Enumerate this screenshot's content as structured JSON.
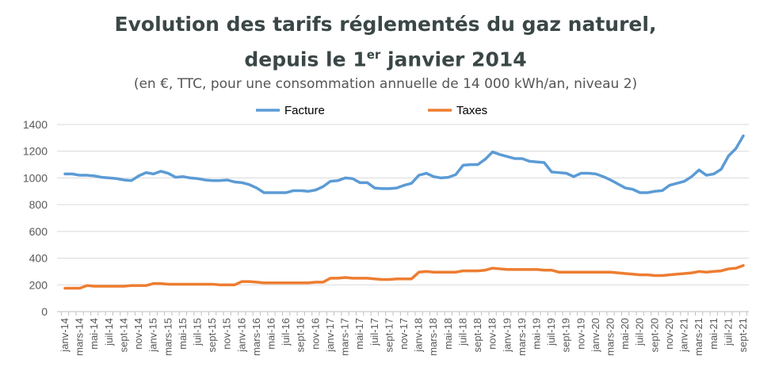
{
  "chart_data": {
    "type": "line",
    "title_line1": "Evolution des tarifs réglementés du gaz naturel,",
    "title_line2_pre": "depuis le 1",
    "title_sup": "er",
    "title_line2_post": " janvier 2014",
    "subtitle": "(en €, TTC, pour une consommation annuelle de 14 000 kWh/an, niveau 2)",
    "ylim": [
      0,
      1400
    ],
    "yticks": [
      0,
      200,
      400,
      600,
      800,
      1000,
      1200,
      1400
    ],
    "grid": true,
    "legend_position": "top",
    "xtick_labels": [
      "janv-14",
      "mars-14",
      "mai-14",
      "juil-14",
      "sept-14",
      "nov-14",
      "janv-15",
      "mars-15",
      "mai-15",
      "juil-15",
      "sept-15",
      "nov-15",
      "janv-16",
      "mars-16",
      "mai-16",
      "juil-16",
      "sept-16",
      "nov-16",
      "janv-17",
      "mars-17",
      "mai-17",
      "juil-17",
      "sept-17",
      "nov-17",
      "janv-18",
      "mars-18",
      "mai-18",
      "juil-18",
      "sept-18",
      "nov-18",
      "janv-19",
      "mars-19",
      "mai-19",
      "juil-19",
      "sept-19",
      "nov-19",
      "janv-20",
      "mars-20",
      "mai-20",
      "juil-20",
      "sept-20",
      "nov-20",
      "janv-21",
      "mars-21",
      "mai-21",
      "juil-21",
      "sept-21"
    ],
    "x_start": "janv-14",
    "x_end": "sept-21",
    "x_frequency": "monthly",
    "series": [
      {
        "name": "Facture",
        "color": "#5b9bd5",
        "values": [
          1030,
          1030,
          1020,
          1020,
          1015,
          1005,
          1000,
          995,
          985,
          980,
          1015,
          1040,
          1030,
          1050,
          1035,
          1005,
          1010,
          1000,
          995,
          985,
          980,
          980,
          985,
          970,
          965,
          950,
          925,
          890,
          890,
          890,
          890,
          905,
          905,
          900,
          910,
          935,
          975,
          980,
          1000,
          995,
          965,
          965,
          925,
          920,
          920,
          925,
          945,
          960,
          1020,
          1035,
          1010,
          1000,
          1005,
          1025,
          1095,
          1100,
          1100,
          1140,
          1195,
          1175,
          1160,
          1145,
          1145,
          1125,
          1120,
          1115,
          1045,
          1040,
          1035,
          1010,
          1035,
          1035,
          1030,
          1010,
          985,
          955,
          925,
          915,
          890,
          890,
          900,
          905,
          945,
          960,
          975,
          1010,
          1060,
          1020,
          1030,
          1065,
          1165,
          1220,
          1315
        ]
      },
      {
        "name": "Taxes",
        "color": "#ed7d31",
        "values": [
          175,
          175,
          175,
          195,
          190,
          190,
          190,
          190,
          190,
          195,
          195,
          195,
          210,
          210,
          205,
          205,
          205,
          205,
          205,
          205,
          205,
          200,
          200,
          200,
          225,
          225,
          220,
          215,
          215,
          215,
          215,
          215,
          215,
          215,
          220,
          220,
          250,
          250,
          255,
          250,
          250,
          250,
          245,
          240,
          240,
          245,
          245,
          245,
          295,
          300,
          295,
          295,
          295,
          295,
          305,
          305,
          305,
          310,
          325,
          320,
          315,
          315,
          315,
          315,
          315,
          310,
          310,
          295,
          295,
          295,
          295,
          295,
          295,
          295,
          295,
          290,
          285,
          280,
          275,
          275,
          270,
          270,
          275,
          280,
          285,
          290,
          300,
          295,
          300,
          305,
          320,
          325,
          345
        ]
      }
    ]
  }
}
